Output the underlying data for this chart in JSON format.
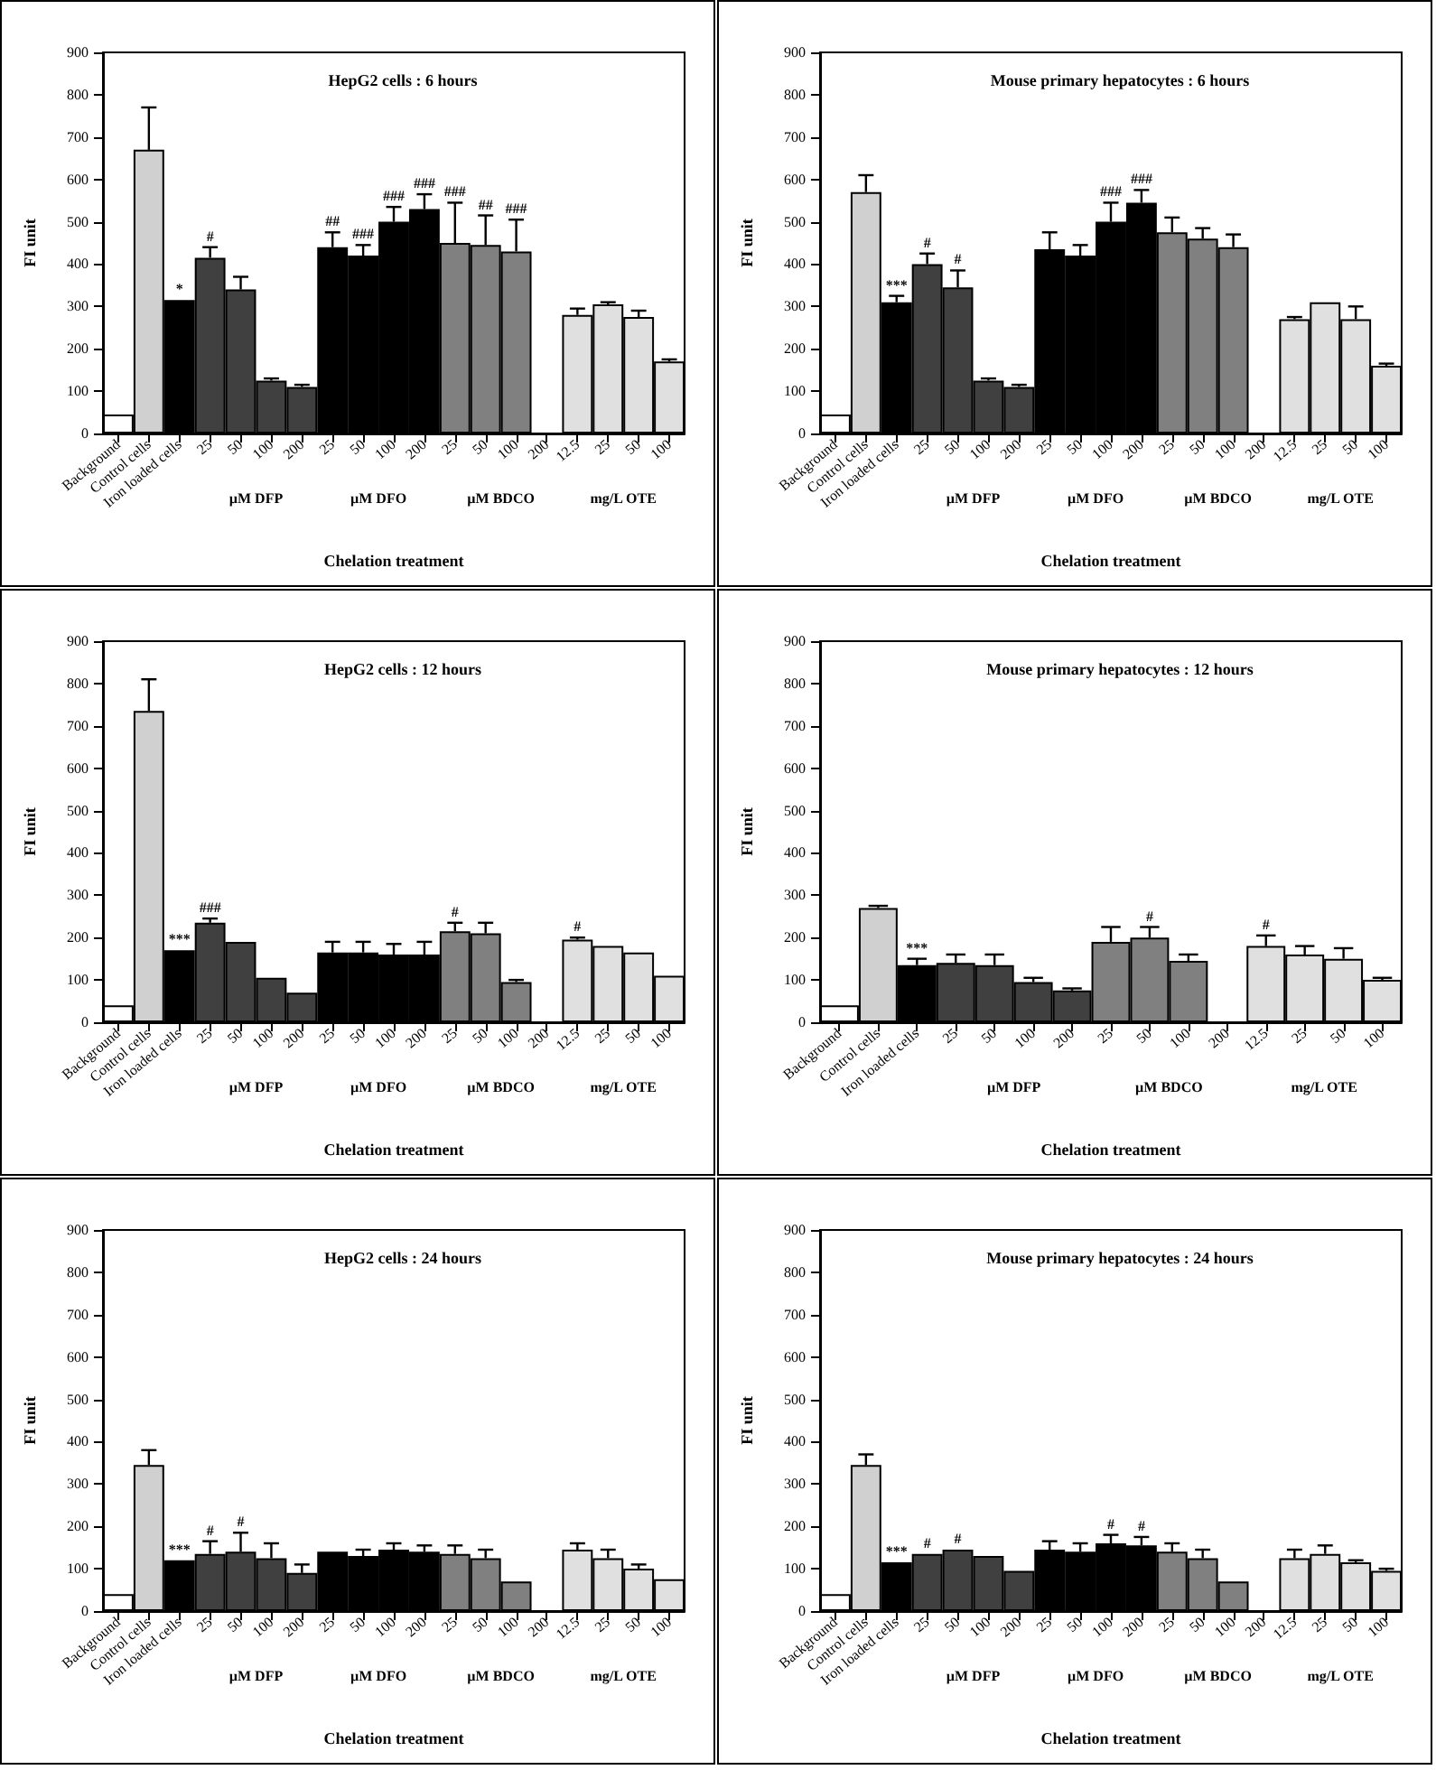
{
  "chart_data": [
    {
      "type": "bar",
      "title": "HepG2 cells : 6 hours",
      "xlabel": "Chelation treatment",
      "ylabel": "FI unit",
      "ylim": [
        0,
        900
      ],
      "yticks": [
        0,
        100,
        200,
        300,
        400,
        500,
        600,
        700,
        800,
        900
      ],
      "categories": [
        "Background",
        "Control cells",
        "Iron loaded cells",
        "25",
        "50",
        "100",
        "200",
        "25",
        "50",
        "100",
        "200",
        "25",
        "50",
        "100",
        "200",
        "12.5",
        "25",
        "50",
        "100"
      ],
      "values": [
        45,
        670,
        315,
        415,
        340,
        125,
        110,
        440,
        420,
        500,
        530,
        450,
        445,
        430,
        null,
        280,
        305,
        275,
        170
      ],
      "errors": [
        null,
        [
          670,
          770
        ],
        null,
        [
          415,
          440
        ],
        [
          340,
          370
        ],
        [
          125,
          130
        ],
        [
          110,
          115
        ],
        [
          440,
          475
        ],
        [
          420,
          445
        ],
        [
          500,
          535
        ],
        [
          530,
          565
        ],
        [
          450,
          545
        ],
        [
          445,
          515
        ],
        [
          430,
          505
        ],
        null,
        [
          280,
          295
        ],
        [
          305,
          310
        ],
        [
          275,
          290
        ],
        [
          170,
          175
        ]
      ],
      "value_labels": [
        null,
        null,
        "*",
        "#",
        null,
        null,
        null,
        "##",
        "###",
        "###",
        "###",
        "###",
        "##",
        "###",
        null,
        null,
        null,
        null,
        null
      ],
      "colors": [
        "#ffffff",
        "#d0d0d0",
        "#000000",
        "#404040",
        "#404040",
        "#404040",
        "#404040",
        "#000000",
        "#000000",
        "#000000",
        "#000000",
        "#808080",
        "#808080",
        "#808080",
        "#808080",
        "#e0e0e0",
        "#e0e0e0",
        "#e0e0e0",
        "#e0e0e0"
      ],
      "annotations": [
        "µM DFP",
        "µM DFO",
        "µM BDCO",
        "mg/L OTE"
      ]
    },
    {
      "type": "bar",
      "title": "Mouse primary hepatocytes : 6 hours",
      "xlabel": "Chelation treatment",
      "ylabel": "FI unit",
      "ylim": [
        0,
        900
      ],
      "yticks": [
        0,
        100,
        200,
        300,
        400,
        500,
        600,
        700,
        800,
        900
      ],
      "categories": [
        "Background",
        "Control cells",
        "Iron loaded cells",
        "25",
        "50",
        "100",
        "200",
        "25",
        "50",
        "100",
        "200",
        "25",
        "50",
        "100",
        "200",
        "12.5",
        "25",
        "50",
        "100"
      ],
      "values": [
        45,
        570,
        310,
        400,
        345,
        125,
        110,
        435,
        420,
        500,
        545,
        475,
        460,
        440,
        null,
        270,
        310,
        270,
        160
      ],
      "errors": [
        null,
        [
          570,
          610
        ],
        [
          310,
          325
        ],
        [
          400,
          425
        ],
        [
          345,
          385
        ],
        [
          125,
          130
        ],
        [
          110,
          115
        ],
        [
          435,
          475
        ],
        [
          420,
          445
        ],
        [
          500,
          545
        ],
        [
          545,
          575
        ],
        [
          475,
          510
        ],
        [
          460,
          485
        ],
        [
          440,
          470
        ],
        null,
        [
          270,
          275
        ],
        null,
        [
          270,
          300
        ],
        [
          160,
          165
        ]
      ],
      "value_labels": [
        null,
        null,
        "***",
        "#",
        "#",
        null,
        null,
        null,
        null,
        "###",
        "###",
        null,
        null,
        null,
        null,
        null,
        null,
        null,
        null
      ],
      "colors": [
        "#ffffff",
        "#d0d0d0",
        "#000000",
        "#404040",
        "#404040",
        "#404040",
        "#404040",
        "#000000",
        "#000000",
        "#000000",
        "#000000",
        "#808080",
        "#808080",
        "#808080",
        "#808080",
        "#e0e0e0",
        "#e0e0e0",
        "#e0e0e0",
        "#e0e0e0"
      ],
      "annotations": [
        "µM DFP",
        "µM DFO",
        "µM BDCO",
        "mg/L OTE"
      ]
    },
    {
      "type": "bar",
      "title": "HepG2 cells : 12 hours",
      "xlabel": "Chelation treatment",
      "ylabel": "FI unit",
      "ylim": [
        0,
        900
      ],
      "yticks": [
        0,
        100,
        200,
        300,
        400,
        500,
        600,
        700,
        800,
        900
      ],
      "categories": [
        "Background",
        "Control cells",
        "Iron loaded cells",
        "25",
        "50",
        "100",
        "200",
        "25",
        "50",
        "100",
        "200",
        "25",
        "50",
        "100",
        "200",
        "12.5",
        "25",
        "50",
        "100"
      ],
      "values": [
        40,
        735,
        170,
        235,
        190,
        105,
        70,
        165,
        165,
        160,
        160,
        215,
        210,
        95,
        null,
        195,
        180,
        165,
        110
      ],
      "errors": [
        null,
        [
          735,
          810
        ],
        null,
        [
          235,
          245
        ],
        null,
        null,
        null,
        [
          165,
          190
        ],
        [
          165,
          190
        ],
        [
          160,
          185
        ],
        [
          160,
          190
        ],
        [
          215,
          235
        ],
        [
          210,
          235
        ],
        [
          95,
          100
        ],
        null,
        [
          195,
          200
        ],
        null,
        null,
        null
      ],
      "value_labels": [
        null,
        null,
        "***",
        "###",
        null,
        null,
        null,
        null,
        null,
        null,
        null,
        "#",
        null,
        null,
        null,
        "#",
        null,
        null,
        null
      ],
      "colors": [
        "#ffffff",
        "#d0d0d0",
        "#000000",
        "#404040",
        "#404040",
        "#404040",
        "#404040",
        "#000000",
        "#000000",
        "#000000",
        "#000000",
        "#808080",
        "#808080",
        "#808080",
        "#808080",
        "#e0e0e0",
        "#e0e0e0",
        "#e0e0e0",
        "#e0e0e0"
      ],
      "annotations": [
        "µM DFP",
        "µM DFO",
        "µM BDCO",
        "mg/L OTE"
      ]
    },
    {
      "type": "bar",
      "title": "Mouse primary hepatocytes : 12 hours",
      "xlabel": "Chelation treatment",
      "ylabel": "FI unit",
      "ylim": [
        0,
        900
      ],
      "yticks": [
        0,
        100,
        200,
        300,
        400,
        500,
        600,
        700,
        800,
        900
      ],
      "categories": [
        "Background",
        "Control cells",
        "Iron loaded cells",
        "25",
        "50",
        "100",
        "200",
        "25",
        "50",
        "100",
        "200",
        "12.5",
        "25",
        "50",
        "100"
      ],
      "values": [
        40,
        270,
        135,
        140,
        135,
        95,
        75,
        190,
        200,
        145,
        null,
        180,
        160,
        150,
        100
      ],
      "errors": [
        null,
        [
          270,
          275
        ],
        [
          135,
          150
        ],
        [
          140,
          160
        ],
        [
          135,
          160
        ],
        [
          95,
          105
        ],
        [
          75,
          80
        ],
        [
          190,
          225
        ],
        [
          200,
          225
        ],
        [
          145,
          160
        ],
        null,
        [
          180,
          205
        ],
        [
          160,
          180
        ],
        [
          150,
          175
        ],
        [
          100,
          105
        ]
      ],
      "value_labels": [
        null,
        null,
        "***",
        null,
        null,
        null,
        null,
        null,
        "#",
        null,
        null,
        "#",
        null,
        null,
        null
      ],
      "colors": [
        "#ffffff",
        "#d0d0d0",
        "#000000",
        "#404040",
        "#404040",
        "#404040",
        "#404040",
        "#808080",
        "#808080",
        "#808080",
        "#808080",
        "#e0e0e0",
        "#e0e0e0",
        "#e0e0e0",
        "#e0e0e0"
      ],
      "annotations": [
        "µM DFP",
        "µM BDCO",
        "mg/L OTE"
      ]
    },
    {
      "type": "bar",
      "title": "HepG2 cells : 24 hours",
      "xlabel": "Chelation treatment",
      "ylabel": "FI unit",
      "ylim": [
        0,
        900
      ],
      "yticks": [
        0,
        100,
        200,
        300,
        400,
        500,
        600,
        700,
        800,
        900
      ],
      "categories": [
        "Background",
        "Control cells",
        "Iron loaded cells",
        "25",
        "50",
        "100",
        "200",
        "25",
        "50",
        "100",
        "200",
        "25",
        "50",
        "100",
        "200",
        "12.5",
        "25",
        "50",
        "100"
      ],
      "values": [
        40,
        345,
        120,
        135,
        140,
        125,
        90,
        140,
        130,
        145,
        140,
        135,
        125,
        70,
        null,
        145,
        125,
        100,
        75
      ],
      "errors": [
        null,
        [
          345,
          380
        ],
        null,
        [
          135,
          165
        ],
        [
          140,
          185
        ],
        [
          125,
          160
        ],
        [
          90,
          110
        ],
        null,
        [
          130,
          145
        ],
        [
          145,
          160
        ],
        [
          140,
          155
        ],
        [
          135,
          155
        ],
        [
          125,
          145
        ],
        null,
        null,
        [
          145,
          160
        ],
        [
          125,
          145
        ],
        [
          100,
          110
        ],
        null
      ],
      "value_labels": [
        null,
        null,
        "***",
        "#",
        "#",
        null,
        null,
        null,
        null,
        null,
        null,
        null,
        null,
        null,
        null,
        null,
        null,
        null,
        null
      ],
      "colors": [
        "#ffffff",
        "#d0d0d0",
        "#000000",
        "#404040",
        "#404040",
        "#404040",
        "#404040",
        "#000000",
        "#000000",
        "#000000",
        "#000000",
        "#808080",
        "#808080",
        "#808080",
        "#808080",
        "#e0e0e0",
        "#e0e0e0",
        "#e0e0e0",
        "#e0e0e0"
      ],
      "annotations": [
        "µM DFP",
        "µM DFO",
        "µM BDCO",
        "mg/L OTE"
      ]
    },
    {
      "type": "bar",
      "title": "Mouse primary hepatocytes : 24 hours",
      "xlabel": "Chelation treatment",
      "ylabel": "FI unit",
      "ylim": [
        0,
        900
      ],
      "yticks": [
        0,
        100,
        200,
        300,
        400,
        500,
        600,
        700,
        800,
        900
      ],
      "categories": [
        "Background",
        "Control cells",
        "Iron loaded cells",
        "25",
        "50",
        "100",
        "200",
        "25",
        "50",
        "100",
        "200",
        "25",
        "50",
        "100",
        "200",
        "12.5",
        "25",
        "50",
        "100"
      ],
      "values": [
        40,
        345,
        115,
        135,
        145,
        130,
        95,
        145,
        140,
        160,
        155,
        140,
        125,
        70,
        null,
        125,
        135,
        115,
        95
      ],
      "errors": [
        null,
        [
          345,
          370
        ],
        null,
        null,
        null,
        null,
        null,
        [
          145,
          165
        ],
        [
          140,
          160
        ],
        [
          160,
          180
        ],
        [
          155,
          175
        ],
        [
          140,
          160
        ],
        [
          125,
          145
        ],
        null,
        null,
        [
          125,
          145
        ],
        [
          135,
          155
        ],
        [
          115,
          120
        ],
        [
          95,
          100
        ]
      ],
      "value_labels": [
        null,
        null,
        "***",
        "#",
        "#",
        null,
        null,
        null,
        null,
        "#",
        "#",
        null,
        null,
        null,
        null,
        null,
        null,
        null,
        null
      ],
      "colors": [
        "#ffffff",
        "#d0d0d0",
        "#000000",
        "#404040",
        "#404040",
        "#404040",
        "#404040",
        "#000000",
        "#000000",
        "#000000",
        "#000000",
        "#808080",
        "#808080",
        "#808080",
        "#808080",
        "#e0e0e0",
        "#e0e0e0",
        "#e0e0e0",
        "#e0e0e0"
      ],
      "annotations": [
        "µM DFP",
        "µM DFO",
        "µM BDCO",
        "mg/L OTE"
      ]
    }
  ]
}
